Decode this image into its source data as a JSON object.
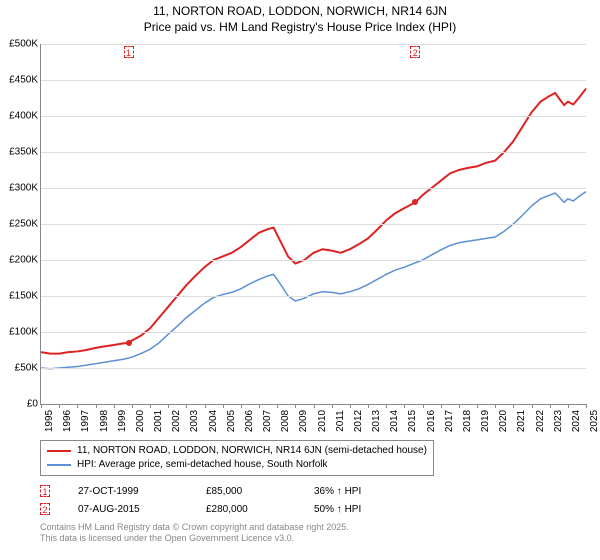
{
  "title": {
    "line1": "11, NORTON ROAD, LODDON, NORWICH, NR14 6JN",
    "line2": "Price paid vs. HM Land Registry's House Price Index (HPI)",
    "fontsize": 12,
    "color": "#000000"
  },
  "chart": {
    "type": "line",
    "background_color": "#ffffff",
    "grid_color": "#dddddd",
    "axis_color": "#888888",
    "xlim": [
      1995,
      2025
    ],
    "ylim": [
      0,
      500
    ],
    "ytick_step": 50,
    "ytick_prefix": "£",
    "ytick_suffix": "K",
    "ytick_zero_label": "£0",
    "xtick_step": 1,
    "tick_fontsize": 10,
    "series": [
      {
        "name": "11, NORTON ROAD, LODDON, NORWICH, NR14 6JN (semi-detached house)",
        "color": "#dd2222",
        "line_width": 2,
        "data": [
          [
            1995.0,
            72
          ],
          [
            1995.5,
            70
          ],
          [
            1996.0,
            70
          ],
          [
            1996.5,
            72
          ],
          [
            1997.0,
            73
          ],
          [
            1997.5,
            75
          ],
          [
            1998.0,
            78
          ],
          [
            1998.5,
            80
          ],
          [
            1999.0,
            82
          ],
          [
            1999.5,
            84
          ],
          [
            1999.82,
            85
          ],
          [
            2000.0,
            88
          ],
          [
            2000.5,
            95
          ],
          [
            2001.0,
            105
          ],
          [
            2001.5,
            120
          ],
          [
            2002.0,
            135
          ],
          [
            2002.5,
            150
          ],
          [
            2003.0,
            165
          ],
          [
            2003.5,
            178
          ],
          [
            2004.0,
            190
          ],
          [
            2004.5,
            200
          ],
          [
            2005.0,
            205
          ],
          [
            2005.5,
            210
          ],
          [
            2006.0,
            218
          ],
          [
            2006.5,
            228
          ],
          [
            2007.0,
            238
          ],
          [
            2007.5,
            243
          ],
          [
            2007.8,
            245
          ],
          [
            2008.0,
            235
          ],
          [
            2008.3,
            220
          ],
          [
            2008.6,
            205
          ],
          [
            2009.0,
            195
          ],
          [
            2009.5,
            200
          ],
          [
            2010.0,
            210
          ],
          [
            2010.5,
            215
          ],
          [
            2011.0,
            213
          ],
          [
            2011.5,
            210
          ],
          [
            2012.0,
            215
          ],
          [
            2012.5,
            222
          ],
          [
            2013.0,
            230
          ],
          [
            2013.5,
            242
          ],
          [
            2014.0,
            255
          ],
          [
            2014.5,
            265
          ],
          [
            2015.0,
            272
          ],
          [
            2015.6,
            280
          ],
          [
            2016.0,
            290
          ],
          [
            2016.5,
            300
          ],
          [
            2017.0,
            310
          ],
          [
            2017.5,
            320
          ],
          [
            2018.0,
            325
          ],
          [
            2018.5,
            328
          ],
          [
            2019.0,
            330
          ],
          [
            2019.5,
            335
          ],
          [
            2020.0,
            338
          ],
          [
            2020.5,
            350
          ],
          [
            2021.0,
            365
          ],
          [
            2021.5,
            385
          ],
          [
            2022.0,
            405
          ],
          [
            2022.5,
            420
          ],
          [
            2023.0,
            428
          ],
          [
            2023.3,
            432
          ],
          [
            2023.5,
            425
          ],
          [
            2023.8,
            415
          ],
          [
            2024.0,
            420
          ],
          [
            2024.3,
            416
          ],
          [
            2024.6,
            425
          ],
          [
            2025.0,
            438
          ]
        ]
      },
      {
        "name": "HPI: Average price, semi-detached house, South Norfolk",
        "color": "#5b8fd6",
        "line_width": 1.5,
        "data": [
          [
            1995.0,
            50
          ],
          [
            1995.5,
            49
          ],
          [
            1996.0,
            50
          ],
          [
            1996.5,
            51
          ],
          [
            1997.0,
            52
          ],
          [
            1997.5,
            54
          ],
          [
            1998.0,
            56
          ],
          [
            1998.5,
            58
          ],
          [
            1999.0,
            60
          ],
          [
            1999.5,
            62
          ],
          [
            2000.0,
            65
          ],
          [
            2000.5,
            70
          ],
          [
            2001.0,
            76
          ],
          [
            2001.5,
            85
          ],
          [
            2002.0,
            97
          ],
          [
            2002.5,
            108
          ],
          [
            2003.0,
            120
          ],
          [
            2003.5,
            130
          ],
          [
            2004.0,
            140
          ],
          [
            2004.5,
            148
          ],
          [
            2005.0,
            152
          ],
          [
            2005.5,
            155
          ],
          [
            2006.0,
            160
          ],
          [
            2006.5,
            167
          ],
          [
            2007.0,
            173
          ],
          [
            2007.5,
            178
          ],
          [
            2007.8,
            180
          ],
          [
            2008.0,
            173
          ],
          [
            2008.3,
            162
          ],
          [
            2008.6,
            150
          ],
          [
            2009.0,
            143
          ],
          [
            2009.5,
            147
          ],
          [
            2010.0,
            153
          ],
          [
            2010.5,
            156
          ],
          [
            2011.0,
            155
          ],
          [
            2011.5,
            153
          ],
          [
            2012.0,
            156
          ],
          [
            2012.5,
            160
          ],
          [
            2013.0,
            166
          ],
          [
            2013.5,
            173
          ],
          [
            2014.0,
            180
          ],
          [
            2014.5,
            186
          ],
          [
            2015.0,
            190
          ],
          [
            2015.5,
            195
          ],
          [
            2016.0,
            200
          ],
          [
            2016.5,
            207
          ],
          [
            2017.0,
            214
          ],
          [
            2017.5,
            220
          ],
          [
            2018.0,
            224
          ],
          [
            2018.5,
            226
          ],
          [
            2019.0,
            228
          ],
          [
            2019.5,
            230
          ],
          [
            2020.0,
            232
          ],
          [
            2020.5,
            240
          ],
          [
            2021.0,
            250
          ],
          [
            2021.5,
            262
          ],
          [
            2022.0,
            275
          ],
          [
            2022.5,
            285
          ],
          [
            2023.0,
            290
          ],
          [
            2023.3,
            293
          ],
          [
            2023.5,
            288
          ],
          [
            2023.8,
            280
          ],
          [
            2024.0,
            285
          ],
          [
            2024.3,
            282
          ],
          [
            2024.6,
            288
          ],
          [
            2025.0,
            295
          ]
        ]
      }
    ],
    "markers": [
      {
        "label": "1",
        "x": 1999.82,
        "y": 85,
        "color": "#dd2222"
      },
      {
        "label": "2",
        "x": 2015.6,
        "y": 280,
        "color": "#dd2222"
      }
    ]
  },
  "legend": {
    "border_color": "#888888",
    "fontsize": 10
  },
  "sales": [
    {
      "marker": "1",
      "marker_color": "#dd2222",
      "date": "27-OCT-1999",
      "price": "£85,000",
      "pct": "36% ↑ HPI"
    },
    {
      "marker": "2",
      "marker_color": "#dd2222",
      "date": "07-AUG-2015",
      "price": "£280,000",
      "pct": "50% ↑ HPI"
    }
  ],
  "attribution": {
    "line1": "Contains HM Land Registry data © Crown copyright and database right 2025.",
    "line2": "This data is licensed under the Open Government Licence v3.0.",
    "color": "#888888",
    "fontsize": 9
  }
}
